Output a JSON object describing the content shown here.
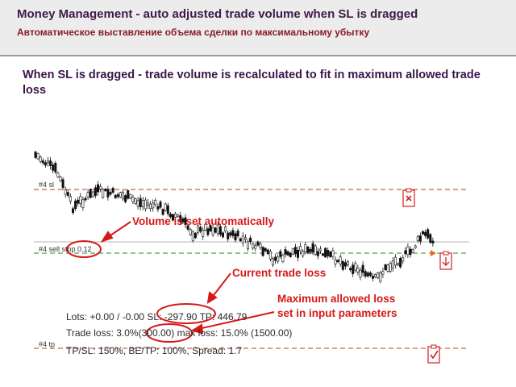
{
  "header": {
    "title": "Money Management - auto adjusted trade volume when SL is dragged",
    "subtitle": "Автоматическое выставление объема сделки по максимальному убытку"
  },
  "headline": "When SL is dragged - trade volume is recalculated to fit in maximum allowed trade loss",
  "chart": {
    "level_labels": {
      "sl": "#4 sl",
      "sell_stop_prefix": "#4 sell stop",
      "sell_stop_volume": "0.12",
      "tp": "#4 tp"
    },
    "info": {
      "lots_before": "Lots: +0.00 / -0.00",
      "sl_value": "SL: -297.90",
      "tp_value": "TP: 446.79",
      "trade_loss_prefix": "Trade loss: 3.0%",
      "trade_loss_value": "(300.00)",
      "max_loss_text": "max loss: 15.0% (1500.00)",
      "stats": "TP/SL: 150%, BE/TP: 100%, Spread: 1.7"
    },
    "annotations": {
      "volume": "Volume is set automatically",
      "current_loss": "Current trade loss",
      "max_loss_line1": "Maximum allowed loss",
      "max_loss_line2": "set in input parameters"
    },
    "colors": {
      "annotation": "#d81818",
      "sl_line": "#c8321e",
      "order_line": "#1f8a1f",
      "price_line": "#b4b4b4"
    }
  }
}
